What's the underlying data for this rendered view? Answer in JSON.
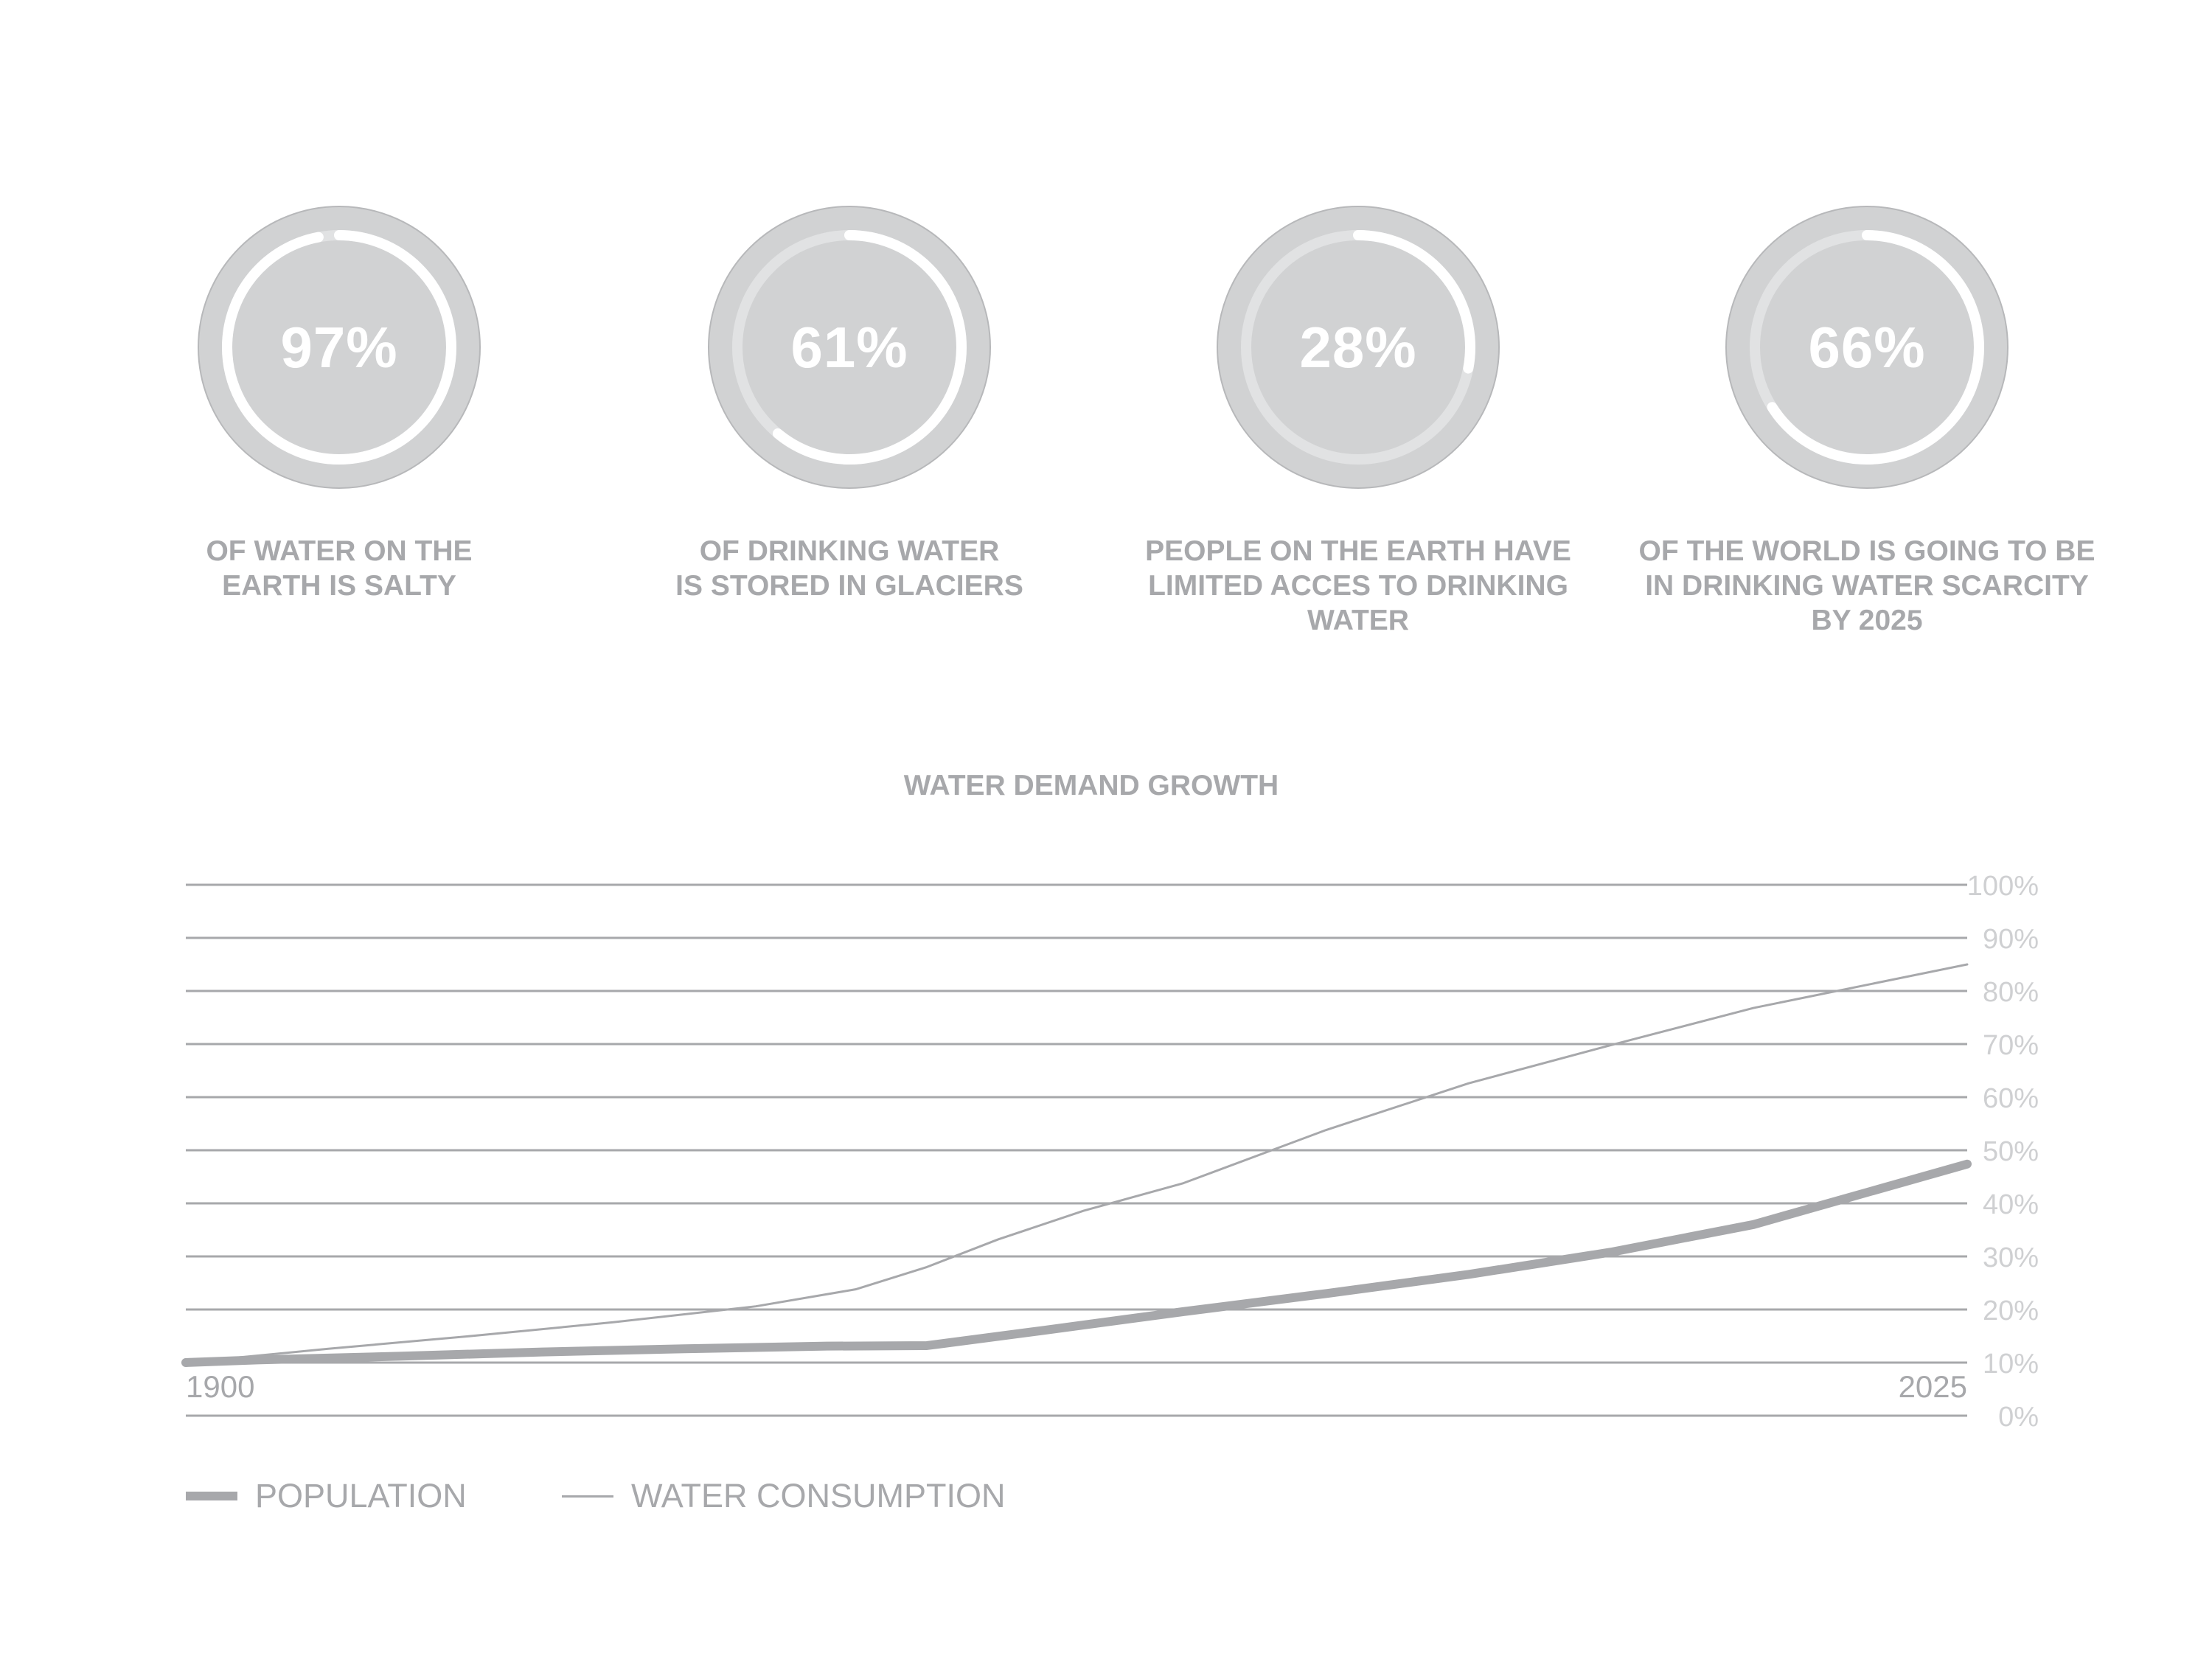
{
  "stats": [
    {
      "value": "97%",
      "fraction": 0.97,
      "caption": [
        "OF WATER ON THE",
        "EARTH IS SALTY"
      ]
    },
    {
      "value": "61%",
      "fraction": 0.61,
      "caption": [
        "OF DRINKING WATER",
        "IS STORED IN GLACIERS"
      ]
    },
    {
      "value": "28%",
      "fraction": 0.28,
      "caption": [
        "PEOPLE ON THE EARTH HAVE",
        "LIMITED ACCES TO DRINKING",
        "WATER"
      ]
    },
    {
      "value": "66%",
      "fraction": 0.66,
      "caption": [
        "OF THE WORLD IS GOING TO BE",
        "IN DRINKING WATER SCARCITY",
        "BY 2025"
      ]
    }
  ],
  "colors": {
    "circle_fill": "#d1d2d3",
    "circle_border": "#b7b8ba",
    "ring_track": "#e1e2e3",
    "ring_progress": "#ffffff",
    "text": "#a7a8ab",
    "grid": "#a7a8ab",
    "ytick": "#cfd0d2",
    "line": "#a7a8ab"
  },
  "chart_data": {
    "type": "line",
    "title": "WATER DEMAND GROWTH",
    "x_tick_labels": [
      "1900",
      "2025"
    ],
    "xlim": [
      1900,
      2025
    ],
    "ylim": [
      0,
      100
    ],
    "y_tick_labels": [
      "0%",
      "10%",
      "20%",
      "30%",
      "40%",
      "50%",
      "60%",
      "70%",
      "80%",
      "90%",
      "100%"
    ],
    "grid": true,
    "legend_position": "bottom-left",
    "series": [
      {
        "name": "POPULATION",
        "style": "thick",
        "x": [
          1900,
          1905,
          1915,
          1925,
          1935,
          1945,
          1952,
          1960,
          1970,
          1980,
          1990,
          2000,
          2010,
          2025
        ],
        "y": [
          10,
          10.5,
          11.2,
          12,
          12.6,
          13.1,
          13.2,
          16,
          19.6,
          23,
          26.6,
          30.8,
          36,
          47.4
        ]
      },
      {
        "name": "WATER CONSUMPTION",
        "style": "thin",
        "x": [
          1900,
          1910,
          1920,
          1930,
          1940,
          1947,
          1952,
          1957,
          1963,
          1970,
          1980,
          1990,
          2000,
          2010,
          2025
        ],
        "y": [
          10,
          12.6,
          15,
          17.6,
          20.6,
          23.8,
          28,
          33.2,
          38.6,
          43.8,
          53.8,
          62.6,
          69.8,
          76.8,
          85
        ]
      }
    ]
  }
}
